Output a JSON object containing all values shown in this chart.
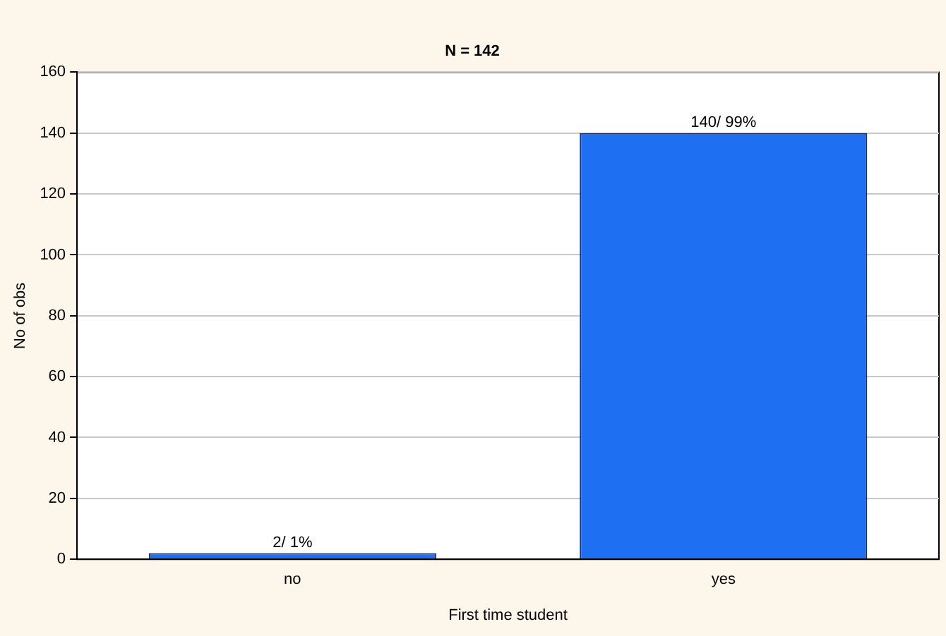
{
  "chart_data": {
    "type": "bar",
    "title": "N = 142",
    "xlabel": "First time student",
    "ylabel": "No of obs",
    "categories": [
      "no",
      "yes"
    ],
    "values": [
      2,
      140
    ],
    "value_labels": [
      "2/ 1%",
      "140/ 99%"
    ],
    "color": "#1f6ff2",
    "ylim": [
      0,
      160
    ],
    "yticks": [
      0,
      20,
      40,
      60,
      80,
      100,
      120,
      140,
      160
    ],
    "grid": "y",
    "legend": false
  }
}
